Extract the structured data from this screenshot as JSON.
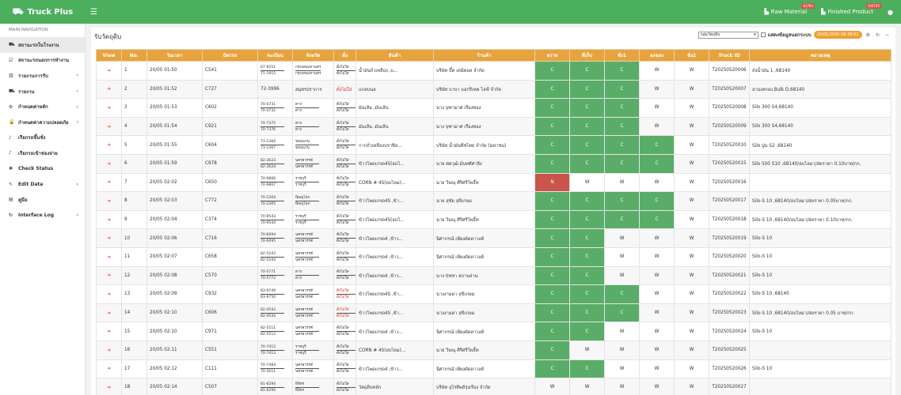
{
  "topbar": {
    "brand": "Truck Plus",
    "raw_material": {
      "label": "Raw Material",
      "badge": "61783"
    },
    "finished_product": {
      "label": "Finished Product",
      "badge": "100745"
    }
  },
  "sidebar": {
    "header": "MAIN NAVIGATION",
    "items": [
      {
        "label": "สถานะรถในโรงงาน",
        "icon": "truck-icon",
        "glyph": "⛟",
        "chevron": false,
        "active": true
      },
      {
        "label": "สถานะรถนอกการทำงาน",
        "icon": "check-square-icon",
        "glyph": "☑",
        "chevron": false,
        "active": false
      },
      {
        "label": "รายงานการรับ",
        "icon": "bar-chart-icon",
        "glyph": "▥",
        "chevron": true,
        "active": false
      },
      {
        "label": "รายงาน",
        "icon": "truck-report-icon",
        "glyph": "⛟",
        "chevron": true,
        "active": false
      },
      {
        "label": "กำหนดค่าหลัก",
        "icon": "gear-icon",
        "glyph": "⚙",
        "chevron": true,
        "active": false
      },
      {
        "label": "กำหนดค่าความปลอดภัย",
        "icon": "lock-icon",
        "glyph": "🔒",
        "chevron": true,
        "active": false
      },
      {
        "label": "เรียกรถขึ้นชั่ง",
        "icon": "volume-icon",
        "glyph": "♪",
        "chevron": false,
        "active": false
      },
      {
        "label": "เรียกรถเข้าช่องจ่าย",
        "icon": "volume-icon",
        "glyph": "♪",
        "chevron": false,
        "active": false
      },
      {
        "label": "Check Status",
        "icon": "spinner-icon",
        "glyph": "✺",
        "chevron": false,
        "active": false
      },
      {
        "label": "Edit Data",
        "icon": "edit-icon",
        "glyph": "✎",
        "chevron": true,
        "active": false
      },
      {
        "label": "คู่มือ",
        "icon": "file-icon",
        "glyph": "▤",
        "chevron": false,
        "active": false
      },
      {
        "label": "Interface Log",
        "icon": "refresh-icon",
        "glyph": "↻",
        "chevron": true,
        "active": false
      }
    ]
  },
  "main": {
    "title": "รับวัตถุดิบ",
    "group_select": "กลุ่มวัตถุดิบ",
    "show_outside_label": "แสดงข้อมูลนอกระบบ",
    "date_badge": "20/05/2025 09:38:02"
  },
  "table": {
    "columns": [
      "View",
      "No.",
      "วันเวลา",
      "บัตรรถ",
      "ทะเบียน",
      "จังหวัด",
      "ตั๋ง",
      "สินค้า",
      "ร้านค้า",
      "ตรวจ",
      "ที่เก็บ",
      "ชั่ง1",
      "ลงของ",
      "ชั่ง2",
      "Truck ID",
      "หมายเหตุ"
    ],
    "rows": [
      {
        "no": "1",
        "time": "20/05 01:50",
        "card": "C541",
        "plate1": "67-9251",
        "plate2": "71-1915",
        "prov1": "กรุงเทพมหานคร",
        "prov2": "กรุงเทพมหานคร",
        "t1": "ตั๋งไม่ใส",
        "t2": "ตั๋งไม่ใส",
        "tred": false,
        "product": "น้ำมันถั่วเหลือง ,บ...",
        "shop": "บริษัท บี๊ค เคมิคอล จำกัด",
        "st": [
          "C",
          "C",
          "C",
          "W",
          "W"
        ],
        "truck_id": "T20250520006",
        "note": "ถังน้ำมัน 1 ,68140"
      },
      {
        "no": "2",
        "time": "20/05 01:52",
        "card": "C727",
        "plate1": "72-3996",
        "plate2": "",
        "prov1": "สมุทรปราการ",
        "prov2": "",
        "t1": "ตั๋งไม่ใส่",
        "t2": "",
        "tred": true,
        "product": "แกลบนล",
        "shop": "บริษัท บาบา แอกริเทค ไลฟ์ จำกัด",
        "st": [
          "C",
          "C",
          "C",
          "W",
          "W"
        ],
        "truck_id": "T20250520007",
        "note": "ลานเทกอง Bulk D,68140"
      },
      {
        "no": "3",
        "time": "20/05 01:53",
        "card": "C602",
        "plate1": "70-4731",
        "plate2": "70-4732",
        "prov1": "ตาก",
        "prov2": "ตาก",
        "t1": "ตั๋งไม่ใส",
        "t2": "ตั๋งไม่ใส",
        "tred": false,
        "product": "มันเส้น ,มันเส้น",
        "shop": "นาง จุฑามาศ เรืองทอง",
        "st": [
          "C",
          "C",
          "C",
          "W",
          "W"
        ],
        "truck_id": "T20250520008",
        "note": "Silo 300 S4,68140"
      },
      {
        "no": "4",
        "time": "20/05 01:54",
        "card": "C921",
        "plate1": "70-7375",
        "plate2": "70-7376",
        "prov1": "ตาก",
        "prov2": "ตาก",
        "t1": "ตั๋งไม่ใส",
        "t2": "ตั๋งไม่ใส",
        "tred": false,
        "product": "มันเส้น ,มันเส้น",
        "shop": "นาง จุฑามาศ เรืองทอง",
        "st": [
          "C",
          "C",
          "C",
          "W",
          "W"
        ],
        "truck_id": "T20250520009",
        "note": "Silo 300 S4,68140"
      },
      {
        "no": "5",
        "time": "20/05 01:55",
        "card": "C604",
        "plate1": "73-1366",
        "plate2": "73-1367",
        "prov1": "ขอนแก่น",
        "prov2": "ขอนแก่น",
        "t1": "ตั๋งไม่ใส",
        "t2": "ตั๋งไม่ใส",
        "tred": false,
        "product": "กากถั่วเหลืองบราซิล...",
        "shop": "บริษัท น้ำมันพืชไทย จำกัด (มหาชน)",
        "st": [
          "C",
          "C",
          "C",
          "C",
          "W"
        ],
        "truck_id": "T20250520010",
        "note": "Silo ปูน S2 ,68140"
      },
      {
        "no": "6",
        "time": "20/05 01:59",
        "card": "C978",
        "plate1": "82-3623",
        "plate2": "82-3624",
        "prov1": "นครสวรรค์",
        "prov2": "นครสวรรค์",
        "t1": "ตั๋งไม่ใส",
        "t2": "ตั๋งไม่ใส",
        "tred": false,
        "product": "ข้าวโพดเกรด4S(อบไ...",
        "shop": "นาย ศตวุฒิ มั่นทศ์ศาสิง",
        "st": [
          "C",
          "C",
          "C",
          "C",
          "W"
        ],
        "truck_id": "T20250520015",
        "note": "Silo 500 S10 ,68140/อบไลมา/ส่ดราคา 0.10บาท/กก."
      },
      {
        "no": "7",
        "time": "20/05 02:02",
        "card": "C650",
        "plate1": "70-9866",
        "plate2": "70-9867",
        "prov1": "ราชบุรี",
        "prov2": "ราชบุรี",
        "t1": "ตั๋งไม่ใส",
        "t2": "ตั๋งไม่ใส",
        "tred": false,
        "product": "CORN # 4S(อบไลม)...",
        "shop": "นาย วิษณุ ศิริศรีโพธิ์ท",
        "st": [
          "N",
          "W",
          "W",
          "W",
          "W"
        ],
        "truck_id": "T20250520016",
        "note": ""
      },
      {
        "no": "8",
        "time": "20/05 02:03",
        "card": "C772",
        "plate1": "70-2304",
        "plate2": "70-2305",
        "prov1": "พิษณุโลก",
        "prov2": "พิษณุโลก",
        "t1": "ตั๋งไม่ใส",
        "t2": "ตั๋งไม่ใส",
        "tred": false,
        "product": "ข้าวโพดเกรด4S ,ข้า...",
        "shop": "นาย สุชัย สุขิเกษม",
        "st": [
          "C",
          "C",
          "C",
          "C",
          "W"
        ],
        "truck_id": "T20250520017",
        "note": "Silo-S 10 ,68140/อบไลมา/ส่ดราคา 0.05บาท/กก."
      },
      {
        "no": "9",
        "time": "20/05 02:04",
        "card": "C374",
        "plate1": "70-9543",
        "plate2": "70-9544",
        "prov1": "ราชบุรี",
        "prov2": "ราชบุรี",
        "t1": "ตั๋งไม่ใส",
        "t2": "ตั๋งไม่ใส",
        "tred": false,
        "product": "ข้าวโพดเกรด4S(อบไ...",
        "shop": "นาย วิษณุ ศิริศรีโพธิ์ท",
        "st": [
          "C",
          "C",
          "C",
          "C",
          "W"
        ],
        "truck_id": "T20250520018",
        "note": "Silo-S 10 ,68140/อบไลมา/ส่ดราคา 0.10บาท/กก."
      },
      {
        "no": "10",
        "time": "20/05 02:06",
        "card": "C716",
        "plate1": "70-6094",
        "plate2": "70-6095",
        "prov1": "นครสวรรค์",
        "prov2": "นครสวรรค์",
        "t1": "ตั๋งไม่ใส",
        "t2": "ตั๋งไม่ใส",
        "tred": false,
        "product": "ข้าวโพดเกรด4 ,ข้าว...",
        "shop": "นิศากรณ์ เพียงดัดดาวงค์",
        "st": [
          "C",
          "C",
          "W",
          "W",
          "W"
        ],
        "truck_id": "T20250520019",
        "note": "Silo-S 10"
      },
      {
        "no": "11",
        "time": "20/05 02:07",
        "card": "C658",
        "plate1": "82-5243",
        "plate2": "82-5244",
        "prov1": "นครสวรรค์",
        "prov2": "นครสวรรค์",
        "t1": "ตั๋งไม่ใส",
        "t2": "ตั๋งไม่ใส",
        "tred": false,
        "product": "ข้าวโพดเกรด4 ,ข้าว...",
        "shop": "นิศากรณ์ เพียงดัดดาวงค์",
        "st": [
          "C",
          "C",
          "W",
          "W",
          "W"
        ],
        "truck_id": "T20250520020",
        "note": "Silo-S 10"
      },
      {
        "no": "12",
        "time": "20/05 02:08",
        "card": "C570",
        "plate1": "70-5771",
        "plate2": "70-5772",
        "prov1": "ตาก",
        "prov2": "ตาก",
        "t1": "ตั๋งไม่ใส",
        "t2": "ตั๋งไม่ใส",
        "tred": false,
        "product": "ข้าวโพดเกรด4 ,ข้าว...",
        "shop": "นาง บัชชา สถานล่าน",
        "st": [
          "C",
          "C",
          "W",
          "W",
          "W"
        ],
        "truck_id": "T20250520021",
        "note": "Silo-S 10"
      },
      {
        "no": "13",
        "time": "20/05 02:09",
        "card": "C932",
        "plate1": "83-9749",
        "plate2": "83-9750",
        "prov1": "นครสวรรค์",
        "prov2": "นครสวรรค์",
        "t1": "ตั๋งไม่ใส่",
        "t2": "ตั๋งไม่ใส่",
        "tred": true,
        "product": "ข้าวโพดเกรด4S ,ข้า...",
        "shop": "นางงามดา สุขิเกษม",
        "st": [
          "C",
          "C",
          "C",
          "W",
          "W"
        ],
        "truck_id": "T20250520022",
        "note": "Silo-S 10 ,68140"
      },
      {
        "no": "14",
        "time": "20/05 02:10",
        "card": "C606",
        "plate1": "82-4543",
        "plate2": "82-4544",
        "prov1": "นครสวรรค์",
        "prov2": "นครสวรรค์",
        "t1": "ตั๋งไม่ใส่",
        "t2": "ตั๋งไม่ใส่",
        "tred": true,
        "product": "ข้าวโพดเกรด4S ,ข้า...",
        "shop": "นางงามดา สุขิเกษม",
        "st": [
          "C",
          "C",
          "C",
          "W",
          "W"
        ],
        "truck_id": "T20250520023",
        "note": "Silo-S 10 ,68140/อบไลมา/ส่ดราคา 0.05 บาท/กก."
      },
      {
        "no": "15",
        "time": "20/05 02:10",
        "card": "C971",
        "plate1": "82-5511",
        "plate2": "82-5512",
        "prov1": "นครสวรรค์",
        "prov2": "นครสวรรค์",
        "t1": "ตั๋งไม่ใส",
        "t2": "ตั๋งไม่ใส",
        "tred": false,
        "product": "ข้าวโพดเกรด4 ,ข้าว...",
        "shop": "นิศากรณ์ เพียงดัดดาวงค์",
        "st": [
          "C",
          "C",
          "W",
          "W",
          "W"
        ],
        "truck_id": "T20250520024",
        "note": "Silo-S 10"
      },
      {
        "no": "16",
        "time": "20/05 02:11",
        "card": "C551",
        "plate1": "70-7412",
        "plate2": "70-7413",
        "prov1": "ราชบุรี",
        "prov2": "ราชบุรี",
        "t1": "ตั๋งไม่ใส",
        "t2": "ตั๋งไม่ใส",
        "tred": false,
        "product": "CORN # 4S(อบไลม)...",
        "shop": "นาย วิษณุ ศิริศรีโพธิ์ท",
        "st": [
          "C",
          "W",
          "W",
          "W",
          "W"
        ],
        "truck_id": "T20250520025",
        "note": ""
      },
      {
        "no": "17",
        "time": "20/05 02:12",
        "card": "C111",
        "plate1": "70-7484",
        "plate2": "70-2611",
        "prov1": "นครสวรรค์",
        "prov2": "นครสวรรค์",
        "t1": "ตั๋งไม่ใส",
        "t2": "ตั๋งไม่ใส",
        "tred": false,
        "product": "ข้าวโพดเกรด4 ,ข้าว...",
        "shop": "นิศากรณ์ เพียงดัดดาวงค์",
        "st": [
          "C",
          "C",
          "W",
          "W",
          "W"
        ],
        "truck_id": "T20250520026",
        "note": "Silo-S 10"
      },
      {
        "no": "18",
        "time": "20/05 02:14",
        "card": "C507",
        "plate1": "81-6294",
        "plate2": "81-6295",
        "prov1": "พิจิตร",
        "prov2": "พิจิตร",
        "t1": "ตั๋งไม่ใส",
        "t2": "ตั๋งไม่ใส",
        "tred": false,
        "product": "วัตถุดิบหลัก",
        "shop": "บริษัท อุไรทิพย์รุ่งเรือง จำกัด",
        "st": [
          "W",
          "W",
          "W",
          "W",
          "W"
        ],
        "truck_id": "T20250520027",
        "note": ""
      }
    ]
  }
}
